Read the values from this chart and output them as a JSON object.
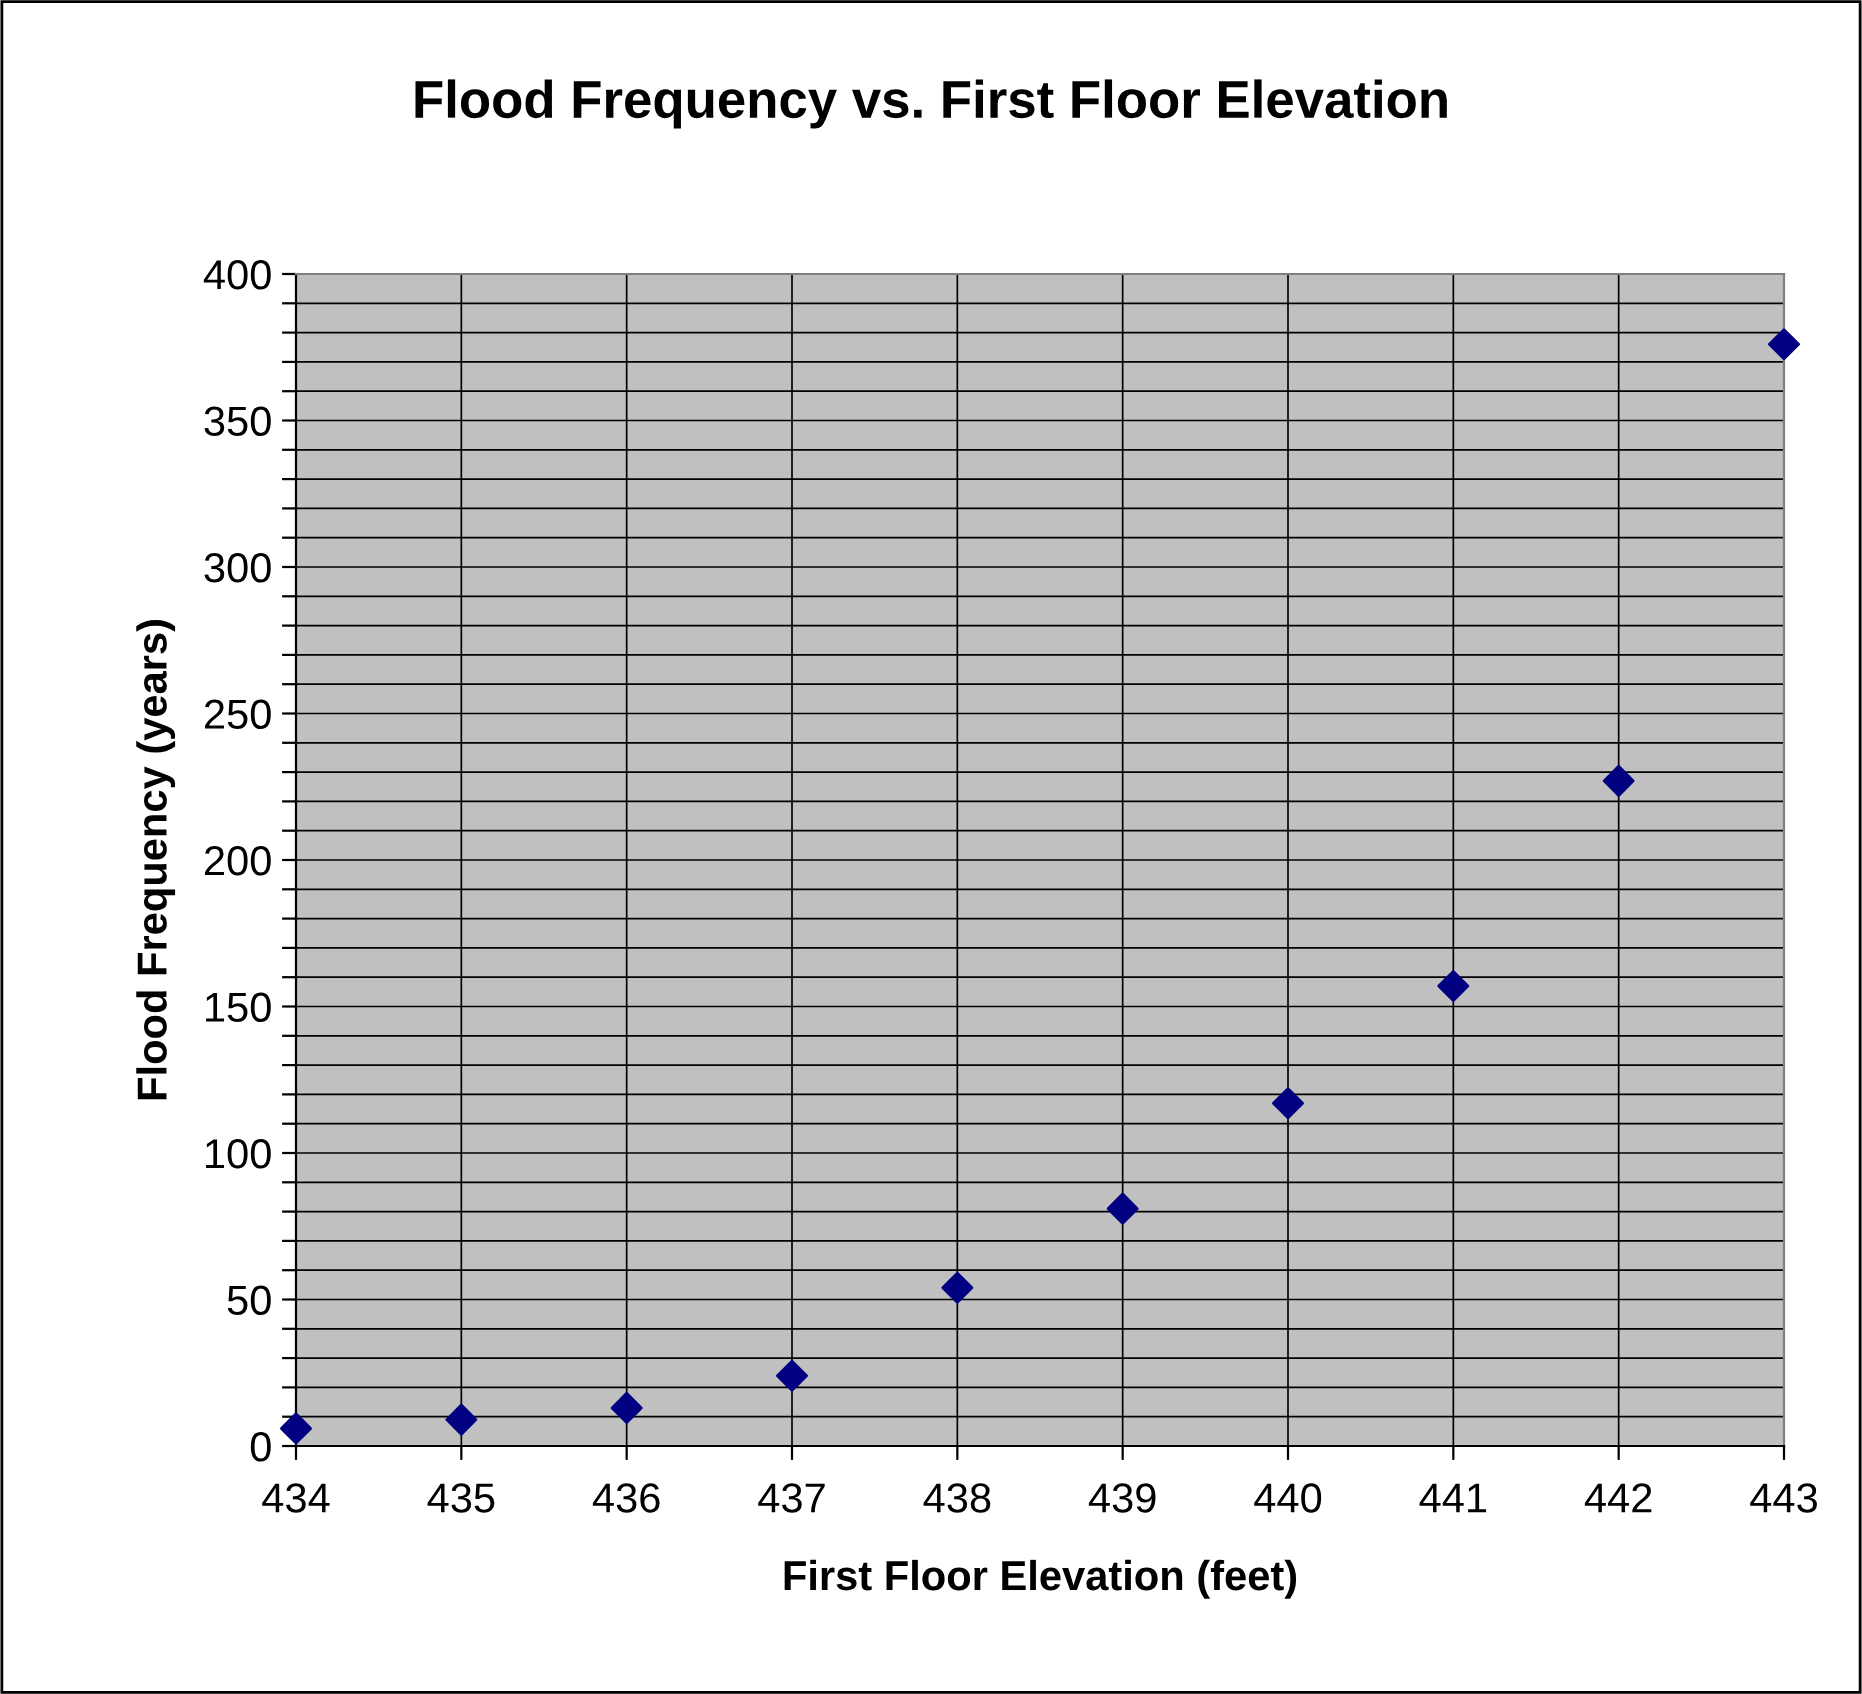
{
  "chart_data": {
    "type": "scatter",
    "title": "Flood Frequency vs. First Floor Elevation",
    "xlabel": "First Floor Elevation (feet)",
    "ylabel": "Flood Frequency (years)",
    "x": [
      434,
      435,
      436,
      437,
      438,
      439,
      440,
      441,
      442,
      443
    ],
    "series": [
      {
        "color": "#000080",
        "values": [
          6,
          9,
          13,
          24,
          54,
          81,
          117,
          157,
          227,
          376
        ]
      }
    ],
    "xlim": [
      434,
      443
    ],
    "xticks": [
      434,
      435,
      436,
      437,
      438,
      439,
      440,
      441,
      442,
      443
    ],
    "ylim": [
      0,
      400
    ],
    "yticks": [
      0,
      {
        "value": 10,
        "label": null
      },
      {
        "value": 20,
        "label": null
      },
      {
        "value": 30,
        "label": null
      },
      {
        "value": 40,
        "label": null
      },
      50,
      {
        "value": 60,
        "label": null
      },
      {
        "value": 70,
        "label": null
      },
      {
        "value": 80,
        "label": null
      },
      {
        "value": 90,
        "label": null
      },
      100,
      {
        "value": 110,
        "label": null
      },
      {
        "value": 120,
        "label": null
      },
      {
        "value": 130,
        "label": null
      },
      {
        "value": 140,
        "label": null
      },
      150,
      {
        "value": 160,
        "label": null
      },
      {
        "value": 170,
        "label": null
      },
      {
        "value": 180,
        "label": null
      },
      {
        "value": 190,
        "label": null
      },
      200,
      {
        "value": 210,
        "label": null
      },
      {
        "value": 220,
        "label": null
      },
      {
        "value": 230,
        "label": null
      },
      {
        "value": 240,
        "label": null
      },
      250,
      {
        "value": 260,
        "label": null
      },
      {
        "value": 270,
        "label": null
      },
      {
        "value": 280,
        "label": null
      },
      {
        "value": 290,
        "label": null
      },
      300,
      {
        "value": 310,
        "label": null
      },
      {
        "value": 320,
        "label": null
      },
      {
        "value": 330,
        "label": null
      },
      {
        "value": 340,
        "label": null
      },
      350,
      {
        "value": 360,
        "label": null
      },
      {
        "value": 370,
        "label": null
      },
      {
        "value": 380,
        "label": null
      },
      {
        "value": 390,
        "label": null
      },
      400
    ],
    "grid": true,
    "marker": "diamond",
    "legend": false
  }
}
